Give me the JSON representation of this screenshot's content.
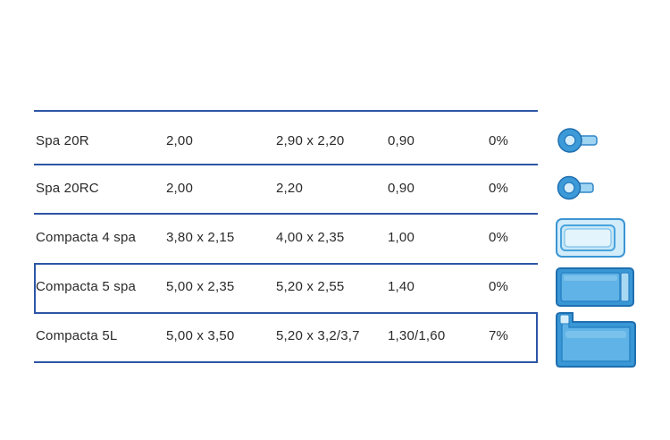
{
  "rows": [
    {
      "model": "Spa 20R",
      "col2": "2,00",
      "col3": "2,90  x  2,20",
      "col4": "0,90",
      "col5": "0%",
      "icon": "round-spa-pool-icon"
    },
    {
      "model": "Spa 20RC",
      "col2": "2,00",
      "col3": "2,20",
      "col4": "0,90",
      "col5": "0%",
      "icon": "round-spa-pool-icon"
    },
    {
      "model": "Compacta 4 spa",
      "col2": "3,80 x 2,15",
      "col3": "4,00  x  2,35",
      "col4": "1,00",
      "col5": "0%",
      "icon": "rectangular-pool-icon"
    },
    {
      "model": "Compacta 5 spa",
      "col2": "5,00 x 2,35",
      "col3": "5,20  x  2,55",
      "col4": "1,40",
      "col5": "0%",
      "icon": "rectangular-pool-with-bench-icon"
    },
    {
      "model": "Compacta 5L",
      "col2": "5,00 x 3,50",
      "col3": "5,20 x 3,2/3,7",
      "col4": "1,30/1,60",
      "col5": "7%",
      "icon": "l-shaped-pool-icon"
    }
  ],
  "colors": {
    "rule": "#2d55a6",
    "water": "#4aa3dc",
    "water_light": "#bfe3f7"
  }
}
